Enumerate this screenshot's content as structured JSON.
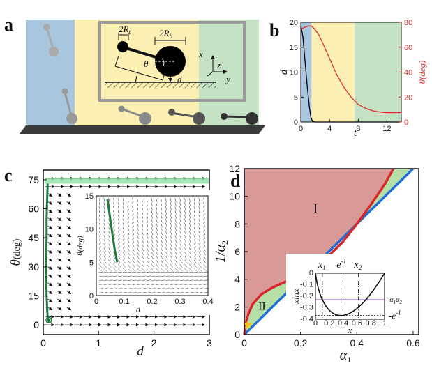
{
  "panel_labels": {
    "a": "a",
    "b": "b",
    "c": "c",
    "d": "d"
  },
  "panel_a": {
    "labels": {
      "two_rt": "2R",
      "rt_sub": "t",
      "two_rb": "2R",
      "rb_sub": "b",
      "theta": "θ",
      "l": "l",
      "d": "d",
      "x": "x",
      "y": "y",
      "z": "z"
    },
    "region_colors": [
      "#a9c6df",
      "#fbefb3",
      "#c6e2c4"
    ]
  },
  "chart_data": [
    {
      "panel": "b",
      "type": "line",
      "xlabel": "t",
      "ylabel_left": "d",
      "ylabel_right": "θ(deg)",
      "xlim": [
        0,
        14
      ],
      "ylim_left": [
        0,
        20
      ],
      "ylim_right": [
        0,
        80
      ],
      "xticks": [
        "0",
        "4",
        "8",
        "12"
      ],
      "yticks_left": [
        "0",
        "5",
        "10",
        "15",
        "20"
      ],
      "yticks_right": [
        "0",
        "20",
        "40",
        "60",
        "80"
      ],
      "regions": [
        {
          "x": [
            0,
            1.5
          ],
          "color": "#a9c6df"
        },
        {
          "x": [
            1.5,
            7.5
          ],
          "color": "#fbefb3"
        },
        {
          "x": [
            7.5,
            14
          ],
          "color": "#c6e2c4"
        }
      ],
      "series": [
        {
          "axis": "left",
          "color": "#000000",
          "x": [
            0,
            0.3,
            0.6,
            0.9,
            1.2,
            1.4,
            1.6,
            2.0,
            14
          ],
          "y": [
            19.5,
            17,
            12,
            7,
            3,
            1,
            0.2,
            0,
            0
          ]
        },
        {
          "axis": "right",
          "color": "#d9302c",
          "x": [
            0,
            0.5,
            1.0,
            1.5,
            2.0,
            2.5,
            3,
            4,
            5,
            6,
            7,
            8,
            9,
            10,
            11,
            12,
            13,
            14
          ],
          "y": [
            74,
            76,
            77,
            77,
            74,
            70,
            64,
            51,
            38,
            28,
            20,
            14,
            11,
            9,
            8,
            7.5,
            7.5,
            7.5
          ]
        }
      ]
    },
    {
      "panel": "c",
      "type": "scatter",
      "xlabel": "d",
      "ylabel": "θ",
      "ylabel_unit": "(deg)",
      "xlim": [
        0,
        3
      ],
      "ylim": [
        -5,
        80
      ],
      "xticks": [
        "0",
        "1",
        "2",
        "3"
      ],
      "yticks": [
        "0",
        "15",
        "30",
        "45",
        "60",
        "75"
      ],
      "trajectory": {
        "color": "#1f7a3b",
        "x": [
          0.08,
          0.07,
          0.06,
          0.06,
          0.05,
          0.05,
          0.06,
          0.07,
          0.08,
          0.1,
          0.12
        ],
        "y": [
          73,
          65,
          55,
          45,
          35,
          25,
          15,
          8,
          4,
          2,
          3
        ]
      },
      "band": {
        "color": "#8fe0a6",
        "y": [
          73,
          76
        ]
      },
      "inset": {
        "xlabel": "d",
        "ylabel": "θ(deg)",
        "xlim": [
          0,
          0.4
        ],
        "ylim": [
          0,
          15
        ],
        "xticks": [
          "0",
          "0.1",
          "0.2",
          "0.3",
          "0.4"
        ],
        "yticks": [
          "0",
          "5",
          "10",
          "15"
        ],
        "trajectory": {
          "color": "#1f7a3b",
          "x": [
            0.04,
            0.045,
            0.05,
            0.055,
            0.06,
            0.065,
            0.07,
            0.075
          ],
          "y": [
            14.5,
            13,
            11.5,
            10,
            8.5,
            7.2,
            6,
            5
          ]
        }
      }
    },
    {
      "panel": "d",
      "type": "area",
      "xlabel": "α",
      "xlabel_sub": "1",
      "ylabel": "1/α",
      "ylabel_sub": "2",
      "xlim": [
        0,
        0.62
      ],
      "ylim": [
        0,
        12
      ],
      "xticks": [
        "0",
        "0.2",
        "0.4",
        "0.6"
      ],
      "yticks": [
        "0",
        "2",
        "4",
        "6",
        "8",
        "10",
        "12"
      ],
      "region_labels": [
        "I",
        "II"
      ],
      "series": [
        {
          "name": "",
          "color": "#1f6fd6",
          "x": [
            0,
            0.05,
            0.1,
            0.2,
            0.3,
            0.4,
            0.5,
            0.6
          ],
          "y": [
            0,
            1.0,
            2.0,
            4.0,
            6.0,
            8.0,
            10.0,
            12.0
          ]
        },
        {
          "name": "",
          "color": "#d6272a",
          "x": [
            0,
            0.005,
            0.015,
            0.03,
            0.06,
            0.1,
            0.15,
            0.2,
            0.25,
            0.3,
            0.35,
            0.4,
            0.45,
            0.5,
            0.53
          ],
          "y": [
            0,
            0.8,
            1.5,
            2.2,
            2.9,
            3.4,
            3.85,
            4.3,
            4.9,
            5.7,
            6.7,
            8.0,
            9.4,
            10.9,
            12.0
          ]
        }
      ],
      "marker": {
        "x": 0.012,
        "y": 0.7,
        "color": "#f5c518"
      },
      "inset": {
        "xlabel": "x",
        "ylabel": "xlnx",
        "xlim": [
          0,
          1
        ],
        "ylim": [
          -0.4,
          0
        ],
        "xticks": [
          "0",
          "0.2",
          "0.4",
          "0.6",
          "0.8",
          "1"
        ],
        "yticks": [
          "-0.4",
          "-0.3",
          "-0.2",
          "-0.1",
          "0"
        ],
        "vlabels": [
          "x",
          "e",
          "x"
        ],
        "vlabel_subs": [
          "1",
          "",
          "2"
        ],
        "vlabel_sups": [
          "",
          "-1",
          ""
        ],
        "vlines_x": [
          0.1,
          0.3679,
          0.62
        ],
        "hline_y": -0.23,
        "hline_label": "α",
        "hline_label_pre": "-",
        "hline_label_subs": "1",
        "hline_label_post": "α",
        "hline_label_post_sub": "2",
        "right_label": "-e",
        "right_label_sup": "-1"
      }
    }
  ]
}
